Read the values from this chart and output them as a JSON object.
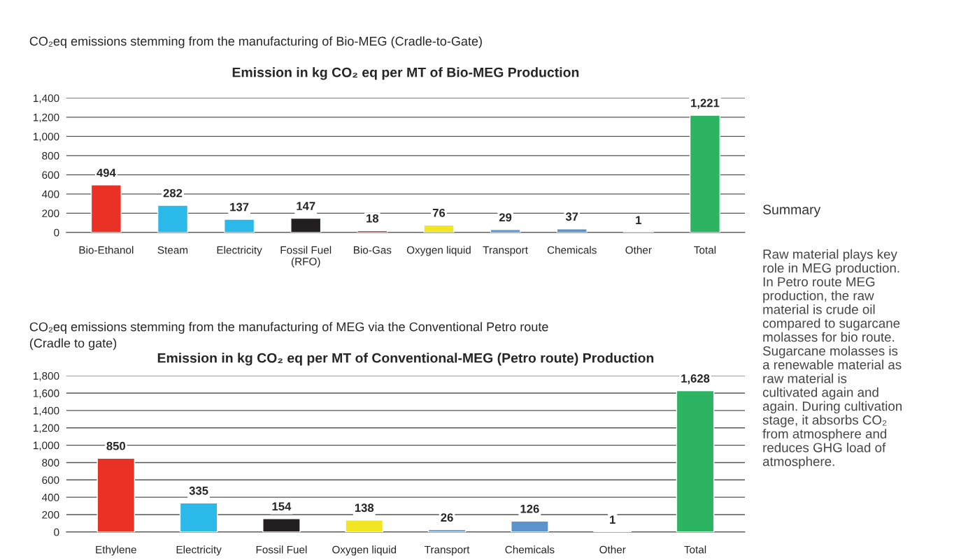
{
  "chart_data": [
    {
      "type": "bar",
      "title": "CO₂eq emissions stemming from the manufacturing of Bio-MEG (Cradle-to-Gate)",
      "subtitle": "Emission in kg CO₂ eq per MT of Bio-MEG Production",
      "categories": [
        "Bio-Ethanol",
        "Steam",
        "Electricity",
        "Fossil Fuel\n(RFO)",
        "Bio-Gas",
        "Oxygen liquid",
        "Transport",
        "Chemicals",
        "Other",
        "Total"
      ],
      "values": [
        494,
        282,
        137,
        147,
        18,
        76,
        29,
        37,
        1,
        1221
      ],
      "value_labels": [
        "494",
        "282",
        "137",
        "147",
        "18",
        "76",
        "29",
        "37",
        "1",
        "1,221"
      ],
      "colors": [
        "#ea3125",
        "#2bb9ea",
        "#2bb9ea",
        "#231f20",
        "#ea3125",
        "#f2e622",
        "#5b93cc",
        "#5b93cc",
        "#5b93cc",
        "#2db463"
      ],
      "ylim": [
        0,
        1400
      ],
      "yticks": [
        0,
        200,
        400,
        600,
        800,
        {
          "value": 1000,
          "label": "1,000"
        },
        {
          "value": 1200,
          "label": "1,200"
        },
        {
          "value": 1400,
          "label": "1,400"
        }
      ],
      "grid": "y",
      "legend": false
    },
    {
      "type": "bar",
      "title": "CO₂eq emissions stemming from the manufacturing of MEG via the Conventional Petro route\n(Cradle to gate)",
      "subtitle": "Emission in kg CO₂ eq per MT of Conventional-MEG (Petro route) Production",
      "categories": [
        "Ethylene",
        "Electricity",
        "Fossil Fuel",
        "Oxygen liquid",
        "Transport",
        "Chemicals",
        "Other",
        "Total"
      ],
      "values": [
        850,
        335,
        154,
        138,
        26,
        126,
        1,
        1628
      ],
      "value_labels": [
        "850",
        "335",
        "154",
        "138",
        "26",
        "126",
        "1",
        "1,628"
      ],
      "colors": [
        "#ea3125",
        "#2bb9ea",
        "#231f20",
        "#f2e622",
        "#5b93cc",
        "#5b93cc",
        "#5b93cc",
        "#2db463"
      ],
      "ylim": [
        0,
        1800
      ],
      "yticks": [
        0,
        200,
        400,
        600,
        800,
        {
          "value": 1000,
          "label": "1,000"
        },
        {
          "value": 1200,
          "label": "1,200"
        },
        {
          "value": 1400,
          "label": "1,400"
        },
        {
          "value": 1600,
          "label": "1,600"
        },
        {
          "value": 1800,
          "label": "1,800"
        }
      ],
      "grid": "y",
      "legend": false
    },
    {
      "type": "other",
      "title": "Summary",
      "annotations": [
        "Raw material plays key\nrole in MEG production.\nIn Petro route MEG\nproduction, the raw\nmaterial is crude oil\ncompared to sugarcane\nmolasses for bio route.\nSugarcane molasses is\na renewable material as\nraw material is\ncultivated again and\nagain. During cultivation\nstage, it absorbs CO₂\nfrom atmosphere and\nreduces GHG load of\natmosphere."
      ]
    }
  ]
}
